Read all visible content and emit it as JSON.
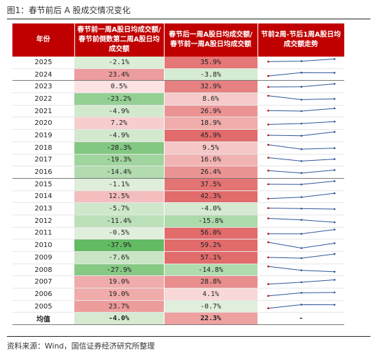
{
  "title": "图1：春节前后 A 股成交情况变化",
  "source": "资料来源：Wind，国信证券经济研究所整理",
  "colors": {
    "header": "#c00000",
    "strong_green": "#5cb85c",
    "strong_red": "#e26b6b"
  },
  "headers": [
    "年份",
    "春节前一周A股日均成交额/春节前倒数第二周A股日均成交额",
    "春节后一周A股日均成交额/春节前一周A股日均成交额",
    "节前2周-节后1周A股日均成交额走势"
  ],
  "rows": [
    {
      "year": "2025",
      "pre": "-2.1%",
      "post": "35.9%",
      "pre_v": -2.1,
      "post_v": 35.9,
      "trend": [
        0.55,
        0.6,
        0.82
      ],
      "sep": false
    },
    {
      "year": "2024",
      "pre": "23.4%",
      "post": "-3.8%",
      "pre_v": 23.4,
      "post_v": -3.8,
      "trend": [
        0.35,
        0.7,
        0.68
      ],
      "sep": true
    },
    {
      "year": "2023",
      "pre": "0.5%",
      "post": "32.9%",
      "pre_v": 0.5,
      "post_v": 32.9,
      "trend": [
        0.5,
        0.52,
        0.82
      ],
      "sep": false
    },
    {
      "year": "2022",
      "pre": "-23.2%",
      "post": "8.6%",
      "pre_v": -23.2,
      "post_v": 8.6,
      "trend": [
        0.8,
        0.4,
        0.48
      ],
      "sep": false
    },
    {
      "year": "2021",
      "pre": "-4.9%",
      "post": "26.9%",
      "pre_v": -4.9,
      "post_v": 26.9,
      "trend": [
        0.55,
        0.5,
        0.78
      ],
      "sep": false
    },
    {
      "year": "2020",
      "pre": "7.2%",
      "post": "18.9%",
      "pre_v": 7.2,
      "post_v": 18.9,
      "trend": [
        0.4,
        0.5,
        0.7
      ],
      "sep": false
    },
    {
      "year": "2019",
      "pre": "-4.9%",
      "post": "45.9%",
      "pre_v": -4.9,
      "post_v": 45.9,
      "trend": [
        0.5,
        0.45,
        0.85
      ],
      "sep": false
    },
    {
      "year": "2018",
      "pre": "-28.3%",
      "post": "9.5%",
      "pre_v": -28.3,
      "post_v": 9.5,
      "trend": [
        0.8,
        0.35,
        0.45
      ],
      "sep": false
    },
    {
      "year": "2017",
      "pre": "-19.3%",
      "post": "16.6%",
      "pre_v": -19.3,
      "post_v": 16.6,
      "trend": [
        0.75,
        0.4,
        0.6
      ],
      "sep": false
    },
    {
      "year": "2016",
      "pre": "-14.4%",
      "post": "26.4%",
      "pre_v": -14.4,
      "post_v": 26.4,
      "trend": [
        0.7,
        0.45,
        0.75
      ],
      "sep": true
    },
    {
      "year": "2015",
      "pre": "-1.1%",
      "post": "37.5%",
      "pre_v": -1.1,
      "post_v": 37.5,
      "trend": [
        0.5,
        0.48,
        0.82
      ],
      "sep": false
    },
    {
      "year": "2014",
      "pre": "12.5%",
      "post": "42.3%",
      "pre_v": 12.5,
      "post_v": 42.3,
      "trend": [
        0.3,
        0.45,
        0.85
      ],
      "sep": false
    },
    {
      "year": "2013",
      "pre": "-5.7%",
      "post": "-4.0%",
      "pre_v": -5.7,
      "post_v": -4.0,
      "trend": [
        0.6,
        0.55,
        0.5
      ],
      "sep": false
    },
    {
      "year": "2012",
      "pre": "-11.4%",
      "post": "-15.8%",
      "pre_v": -11.4,
      "post_v": -15.8,
      "trend": [
        0.75,
        0.6,
        0.35
      ],
      "sep": false
    },
    {
      "year": "2011",
      "pre": "-0.5%",
      "post": "56.0%",
      "pre_v": -0.5,
      "post_v": 56.0,
      "trend": [
        0.45,
        0.44,
        0.88
      ],
      "sep": false
    },
    {
      "year": "2010",
      "pre": "-37.9%",
      "post": "59.2%",
      "pre_v": -37.9,
      "post_v": 59.2,
      "trend": [
        0.85,
        0.25,
        0.75
      ],
      "sep": false
    },
    {
      "year": "2009",
      "pre": "-7.6%",
      "post": "57.1%",
      "pre_v": -7.6,
      "post_v": 57.1,
      "trend": [
        0.5,
        0.42,
        0.85
      ],
      "sep": false
    },
    {
      "year": "2008",
      "pre": "-27.9%",
      "post": "-14.8%",
      "pre_v": -27.9,
      "post_v": -14.8,
      "trend": [
        0.85,
        0.45,
        0.3
      ],
      "sep": false
    },
    {
      "year": "2007",
      "pre": "19.0%",
      "post": "28.8%",
      "pre_v": 19.0,
      "post_v": 28.8,
      "trend": [
        0.3,
        0.5,
        0.75
      ],
      "sep": false
    },
    {
      "year": "2006",
      "pre": "19.0%",
      "post": "4.1%",
      "pre_v": 19.0,
      "post_v": 4.1,
      "trend": [
        0.3,
        0.62,
        0.66
      ],
      "sep": false
    },
    {
      "year": "2005",
      "pre": "23.7%",
      "post": "-0.7%",
      "pre_v": 23.7,
      "post_v": -0.7,
      "trend": [
        0.3,
        0.68,
        0.67
      ],
      "sep": false
    }
  ],
  "average": {
    "label": "均值",
    "pre": "-4.0%",
    "post": "22.3%",
    "pre_v": -4.0,
    "post_v": 22.3,
    "trend": "-"
  }
}
